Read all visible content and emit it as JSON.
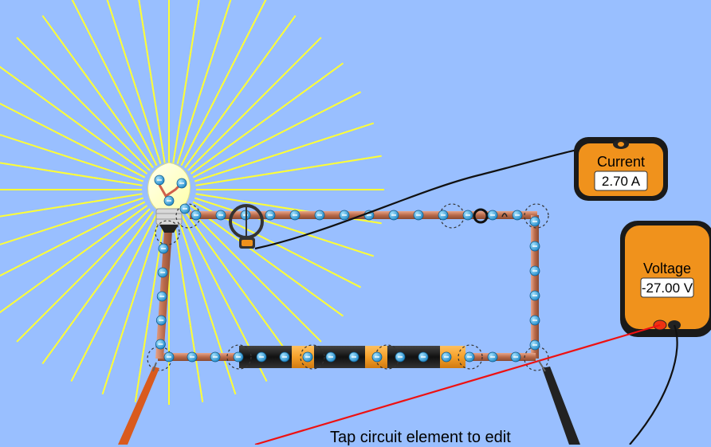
{
  "ammeter": {
    "label": "Current",
    "value": "2.70 A"
  },
  "voltmeter": {
    "label": "Voltage",
    "value": "-27.00 V"
  },
  "hint": "Tap circuit element to edit",
  "colors": {
    "background": "#99bfff",
    "wire": "#c27a5a",
    "electron": "#3aa8d8",
    "meter_body": "#f0921c",
    "light_rays": "#ffff33",
    "probe_red": "#ee1111",
    "probe_black": "#111111"
  }
}
